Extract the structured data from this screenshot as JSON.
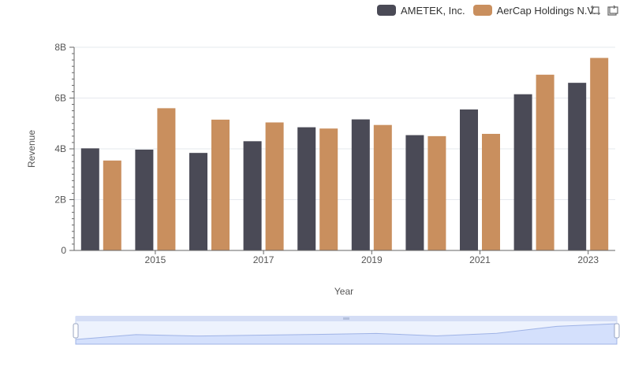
{
  "legend": {
    "series": [
      {
        "name": "AMETEK, Inc.",
        "color": "#4a4a56"
      },
      {
        "name": "AerCap Holdings N.V.",
        "color": "#c98f5e"
      }
    ]
  },
  "toolbox": {
    "icons": [
      "zoom-select-icon",
      "zoom-reset-icon"
    ]
  },
  "colors": {
    "grid": "#e6e8ee",
    "axis": "#555555",
    "slider_fill": "#dfe7fb",
    "slider_line": "#9fb3e6"
  },
  "chart_data": {
    "type": "bar",
    "xlabel": "Year",
    "ylabel": "Revenue",
    "x_tick_labels": [
      "2015",
      "2017",
      "2019",
      "2021",
      "2023"
    ],
    "y_tick_labels": [
      "0",
      "2B",
      "4B",
      "6B",
      "8B"
    ],
    "ylim": [
      0,
      8
    ],
    "y_unit": "B",
    "grid": true,
    "legend_position": "top-right",
    "has_zoom_slider": true,
    "categories": [
      "2014",
      "2015",
      "2016",
      "2017",
      "2018",
      "2019",
      "2020",
      "2021",
      "2022",
      "2023"
    ],
    "series": [
      {
        "name": "AMETEK, Inc.",
        "values": [
          4.02,
          3.97,
          3.84,
          4.3,
          4.85,
          5.16,
          4.54,
          5.55,
          6.15,
          6.6
        ]
      },
      {
        "name": "AerCap Holdings N.V.",
        "values": [
          3.54,
          5.6,
          5.15,
          5.04,
          4.8,
          4.94,
          4.5,
          4.59,
          6.92,
          7.58
        ]
      }
    ]
  }
}
